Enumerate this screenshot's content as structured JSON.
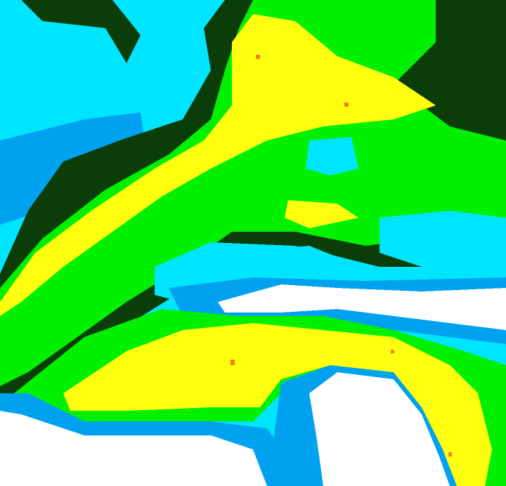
{
  "map": {
    "type": "false-color raster intensity map",
    "colors": {
      "white": "#ffffff",
      "cyan": "#00e5ff",
      "blue": "#00a2f0",
      "dark_green": "#0b3d08",
      "green": "#00f000",
      "yellow": "#ffff10",
      "orange": "#ff7a1a"
    }
  }
}
